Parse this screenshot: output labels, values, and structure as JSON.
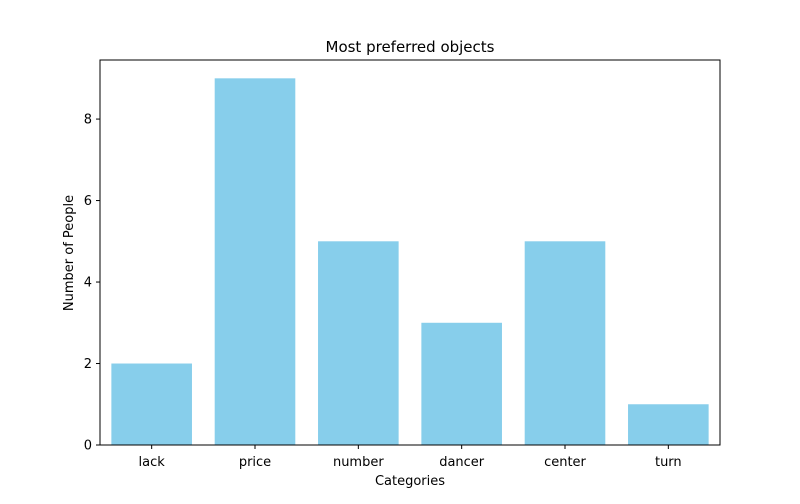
{
  "chart_data": {
    "type": "bar",
    "title": "Most preferred objects",
    "xlabel": "Categories",
    "ylabel": "Number of People",
    "categories": [
      "lack",
      "price",
      "number",
      "dancer",
      "center",
      "turn"
    ],
    "values": [
      2,
      9,
      5,
      3,
      5,
      1
    ],
    "ylim": [
      0,
      9.45
    ],
    "yticks": [
      0,
      2,
      4,
      6,
      8
    ],
    "bar_color": "#87CEEB",
    "grid": false,
    "legend": "none"
  }
}
